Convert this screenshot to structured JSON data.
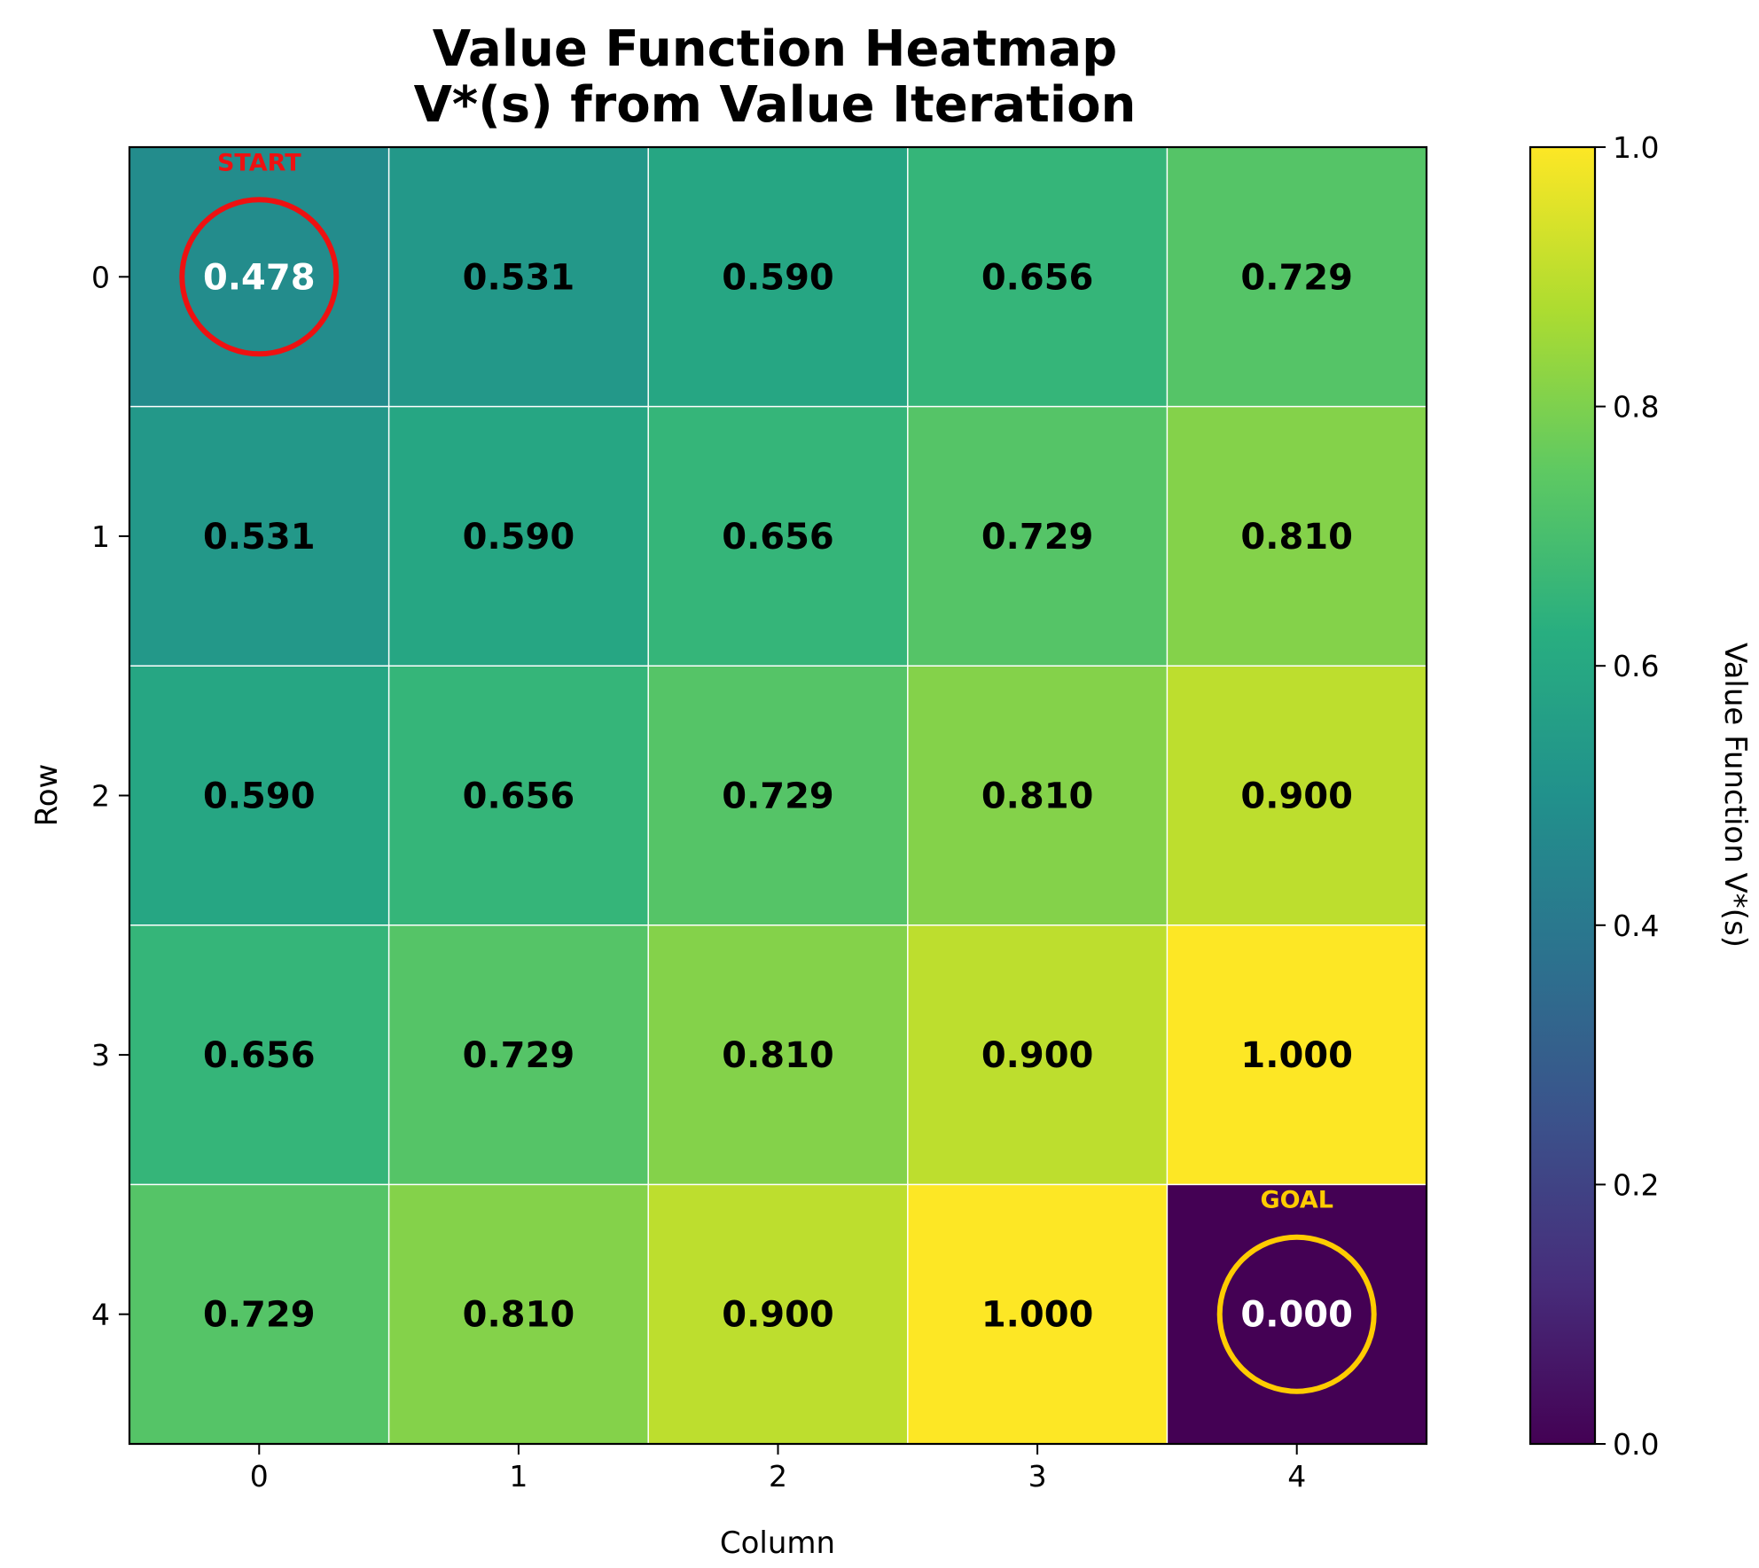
{
  "chart_data": {
    "type": "heatmap",
    "title": [
      "Value Function Heatmap",
      "V*(s) from Value Iteration"
    ],
    "xlabel": "Column",
    "ylabel": "Row",
    "x_ticks": [
      "0",
      "1",
      "2",
      "3",
      "4"
    ],
    "y_ticks": [
      "0",
      "1",
      "2",
      "3",
      "4"
    ],
    "values": [
      [
        0.478,
        0.531,
        0.59,
        0.656,
        0.729
      ],
      [
        0.531,
        0.59,
        0.656,
        0.729,
        0.81
      ],
      [
        0.59,
        0.656,
        0.729,
        0.81,
        0.9
      ],
      [
        0.656,
        0.729,
        0.81,
        0.9,
        1.0
      ],
      [
        0.729,
        0.81,
        0.9,
        1.0,
        0.0
      ]
    ],
    "cell_labels": [
      [
        "0.478",
        "0.531",
        "0.590",
        "0.656",
        "0.729"
      ],
      [
        "0.531",
        "0.590",
        "0.656",
        "0.729",
        "0.810"
      ],
      [
        "0.590",
        "0.656",
        "0.729",
        "0.810",
        "0.900"
      ],
      [
        "0.656",
        "0.729",
        "0.810",
        "0.900",
        "1.000"
      ],
      [
        "0.729",
        "0.810",
        "0.900",
        "1.000",
        "0.000"
      ]
    ],
    "colormap": "viridis",
    "colorbar": {
      "label": "Value Function V*(s)",
      "range": [
        0.0,
        1.0
      ],
      "ticks": [
        "0.0",
        "0.2",
        "0.4",
        "0.6",
        "0.8",
        "1.0"
      ]
    },
    "markers": [
      {
        "label": "START",
        "row": 0,
        "col": 0,
        "color": "#ee1111"
      },
      {
        "label": "GOAL",
        "row": 4,
        "col": 4,
        "color": "#ffcc00"
      }
    ]
  }
}
